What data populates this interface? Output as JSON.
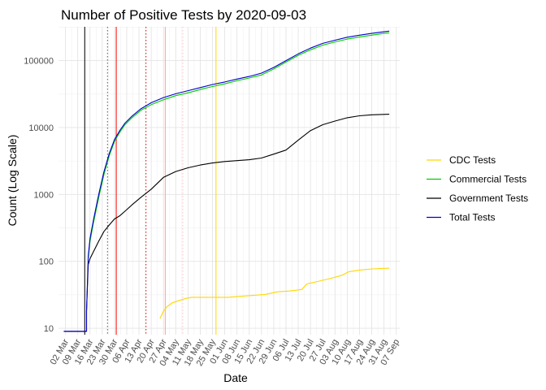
{
  "chart_data": {
    "type": "line",
    "title": "Number of Positive Tests by  2020-09-03",
    "xlabel": "Date",
    "ylabel": "Count (Log Scale)",
    "y_scale": "log10",
    "ylim": [
      8,
      320000
    ],
    "xlim": [
      "2020-02-27",
      "2020-09-09"
    ],
    "y_ticks": [
      10,
      100,
      1000,
      10000,
      100000
    ],
    "y_tick_labels": [
      "10",
      "100",
      "1000",
      "10000",
      "100000"
    ],
    "x_ticks": [
      "2020-03-02",
      "2020-03-09",
      "2020-03-16",
      "2020-03-23",
      "2020-03-30",
      "2020-04-06",
      "2020-04-13",
      "2020-04-20",
      "2020-04-27",
      "2020-05-04",
      "2020-05-11",
      "2020-05-18",
      "2020-05-25",
      "2020-06-01",
      "2020-06-08",
      "2020-06-15",
      "2020-06-22",
      "2020-06-29",
      "2020-07-06",
      "2020-07-13",
      "2020-07-20",
      "2020-07-27",
      "2020-08-03",
      "2020-08-10",
      "2020-08-17",
      "2020-08-24",
      "2020-08-31",
      "2020-09-07"
    ],
    "x_tick_labels": [
      "02 Mar",
      "09 Mar",
      "16 Mar",
      "23 Mar",
      "30 Mar",
      "06 Apr",
      "13 Apr",
      "20 Apr",
      "27 Apr",
      "04 May",
      "11 May",
      "18 May",
      "25 May",
      "01 Jun",
      "08 Jun",
      "15 Jun",
      "22 Jun",
      "29 Jun",
      "06 Jul",
      "13 Jul",
      "20 Jul",
      "27 Jul",
      "03 Aug",
      "10 Aug",
      "17 Aug",
      "24 Aug",
      "31 Aug",
      "07 Sep"
    ],
    "grid": true,
    "legend_position": "right",
    "series": [
      {
        "name": "CDC Tests",
        "color": "#FFD700",
        "points": [
          [
            "2020-04-25",
            14
          ],
          [
            "2020-04-27",
            18
          ],
          [
            "2020-04-29",
            21
          ],
          [
            "2020-05-02",
            24
          ],
          [
            "2020-05-06",
            26
          ],
          [
            "2020-05-10",
            28
          ],
          [
            "2020-05-13",
            29
          ],
          [
            "2020-05-20",
            29
          ],
          [
            "2020-05-27",
            29
          ],
          [
            "2020-06-03",
            29
          ],
          [
            "2020-06-10",
            30
          ],
          [
            "2020-06-17",
            31
          ],
          [
            "2020-06-24",
            32
          ],
          [
            "2020-07-01",
            35
          ],
          [
            "2020-07-08",
            36
          ],
          [
            "2020-07-15",
            38
          ],
          [
            "2020-07-18",
            46
          ],
          [
            "2020-07-24",
            50
          ],
          [
            "2020-08-01",
            56
          ],
          [
            "2020-08-07",
            62
          ],
          [
            "2020-08-11",
            70
          ],
          [
            "2020-08-17",
            74
          ],
          [
            "2020-08-24",
            77
          ],
          [
            "2020-09-03",
            79
          ]
        ]
      },
      {
        "name": "Commercial Tests",
        "color": "#00CC00",
        "points": [
          [
            "2020-03-15",
            110
          ],
          [
            "2020-03-16",
            200
          ],
          [
            "2020-03-18",
            380
          ],
          [
            "2020-03-21",
            900
          ],
          [
            "2020-03-24",
            2000
          ],
          [
            "2020-03-27",
            3800
          ],
          [
            "2020-03-30",
            6200
          ],
          [
            "2020-04-02",
            8500
          ],
          [
            "2020-04-05",
            11000
          ],
          [
            "2020-04-09",
            14000
          ],
          [
            "2020-04-14",
            18000
          ],
          [
            "2020-04-20",
            22000
          ],
          [
            "2020-04-27",
            26000
          ],
          [
            "2020-05-04",
            30000
          ],
          [
            "2020-05-11",
            33000
          ],
          [
            "2020-05-18",
            37000
          ],
          [
            "2020-05-25",
            41000
          ],
          [
            "2020-06-01",
            45000
          ],
          [
            "2020-06-08",
            50000
          ],
          [
            "2020-06-15",
            55000
          ],
          [
            "2020-06-22",
            61000
          ],
          [
            "2020-06-29",
            75000
          ],
          [
            "2020-07-06",
            95000
          ],
          [
            "2020-07-13",
            120000
          ],
          [
            "2020-07-20",
            145000
          ],
          [
            "2020-07-27",
            170000
          ],
          [
            "2020-08-03",
            190000
          ],
          [
            "2020-08-10",
            210000
          ],
          [
            "2020-08-17",
            225000
          ],
          [
            "2020-08-24",
            240000
          ],
          [
            "2020-08-31",
            255000
          ],
          [
            "2020-09-03",
            260000
          ]
        ]
      },
      {
        "name": "Government Tests",
        "color": "#000000",
        "points": [
          [
            "2020-03-01",
            9
          ],
          [
            "2020-03-14",
            9
          ],
          [
            "2020-03-14",
            18
          ],
          [
            "2020-03-15",
            90
          ],
          [
            "2020-03-16",
            110
          ],
          [
            "2020-03-18",
            140
          ],
          [
            "2020-03-21",
            200
          ],
          [
            "2020-03-24",
            280
          ],
          [
            "2020-03-27",
            350
          ],
          [
            "2020-03-30",
            430
          ],
          [
            "2020-04-02",
            480
          ],
          [
            "2020-04-05",
            560
          ],
          [
            "2020-04-09",
            700
          ],
          [
            "2020-04-14",
            900
          ],
          [
            "2020-04-20",
            1200
          ],
          [
            "2020-04-27",
            1800
          ],
          [
            "2020-05-04",
            2200
          ],
          [
            "2020-05-11",
            2500
          ],
          [
            "2020-05-18",
            2750
          ],
          [
            "2020-05-25",
            2950
          ],
          [
            "2020-06-01",
            3100
          ],
          [
            "2020-06-08",
            3200
          ],
          [
            "2020-06-15",
            3300
          ],
          [
            "2020-06-22",
            3500
          ],
          [
            "2020-06-29",
            4000
          ],
          [
            "2020-07-06",
            4600
          ],
          [
            "2020-07-13",
            6500
          ],
          [
            "2020-07-20",
            9000
          ],
          [
            "2020-07-27",
            11000
          ],
          [
            "2020-08-03",
            12500
          ],
          [
            "2020-08-10",
            14000
          ],
          [
            "2020-08-17",
            15000
          ],
          [
            "2020-08-24",
            15500
          ],
          [
            "2020-09-03",
            15800
          ]
        ]
      },
      {
        "name": "Total Tests",
        "color": "#0000CC",
        "points": [
          [
            "2020-03-01",
            9
          ],
          [
            "2020-03-14",
            9
          ],
          [
            "2020-03-14",
            18
          ],
          [
            "2020-03-15",
            120
          ],
          [
            "2020-03-16",
            220
          ],
          [
            "2020-03-18",
            420
          ],
          [
            "2020-03-21",
            1000
          ],
          [
            "2020-03-24",
            2200
          ],
          [
            "2020-03-27",
            4100
          ],
          [
            "2020-03-30",
            6600
          ],
          [
            "2020-04-02",
            9000
          ],
          [
            "2020-04-05",
            11600
          ],
          [
            "2020-04-09",
            14800
          ],
          [
            "2020-04-14",
            19000
          ],
          [
            "2020-04-20",
            23500
          ],
          [
            "2020-04-27",
            28000
          ],
          [
            "2020-05-04",
            32000
          ],
          [
            "2020-05-11",
            35500
          ],
          [
            "2020-05-18",
            39500
          ],
          [
            "2020-05-25",
            44000
          ],
          [
            "2020-06-01",
            48000
          ],
          [
            "2020-06-08",
            53000
          ],
          [
            "2020-06-15",
            58000
          ],
          [
            "2020-06-22",
            65000
          ],
          [
            "2020-06-29",
            79000
          ],
          [
            "2020-07-06",
            100000
          ],
          [
            "2020-07-13",
            126000
          ],
          [
            "2020-07-20",
            154000
          ],
          [
            "2020-07-27",
            181000
          ],
          [
            "2020-08-03",
            202000
          ],
          [
            "2020-08-10",
            224000
          ],
          [
            "2020-08-17",
            240000
          ],
          [
            "2020-08-24",
            255000
          ],
          [
            "2020-08-31",
            270000
          ],
          [
            "2020-09-03",
            276000
          ]
        ]
      }
    ],
    "reference_lines": [
      {
        "x": "2020-03-13",
        "color": "#000000",
        "style": "solid"
      },
      {
        "x": "2020-03-26",
        "color": "#555555",
        "style": "dotted"
      },
      {
        "x": "2020-03-31",
        "color": "#FF0000",
        "style": "solid"
      },
      {
        "x": "2020-04-17",
        "color": "#CC0000",
        "style": "dotted"
      },
      {
        "x": "2020-04-28",
        "color": "#FFA0A0",
        "style": "solid"
      },
      {
        "x": "2020-05-08",
        "color": "#FFC0C0",
        "style": "dotted"
      },
      {
        "x": "2020-05-27",
        "color": "#FFD700",
        "style": "solid"
      }
    ]
  }
}
